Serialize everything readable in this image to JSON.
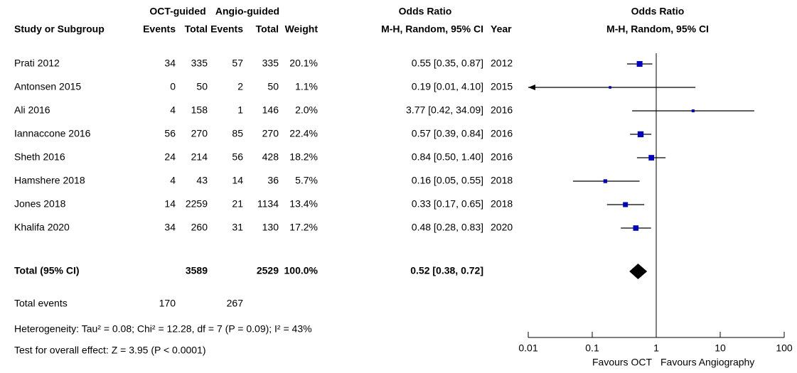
{
  "chart_data": {
    "type": "forest",
    "group_headers": {
      "oct": "OCT-guided",
      "angio": "Angio-guided",
      "or_table": "Odds Ratio",
      "or_plot": "Odds Ratio"
    },
    "column_headers": {
      "study": "Study or Subgroup",
      "events_oct": "Events",
      "total_oct": "Total",
      "events_angio": "Events",
      "total_angio": "Total",
      "weight": "Weight",
      "ci": "M-H, Random, 95% CI",
      "year": "Year",
      "plot_ci": "M-H, Random, 95% CI"
    },
    "studies": [
      "Prati 2012",
      "Antonsen 2015",
      "Ali 2016",
      "Iannaccone 2016",
      "Sheth 2016",
      "Hamshere 2018",
      "Jones 2018",
      "Khalifa 2020"
    ],
    "events_oct": [
      34,
      0,
      4,
      56,
      24,
      4,
      14,
      34
    ],
    "total_oct": [
      335,
      50,
      158,
      270,
      214,
      43,
      2259,
      260
    ],
    "events_angio": [
      57,
      2,
      1,
      85,
      56,
      14,
      21,
      31
    ],
    "total_angio": [
      335,
      50,
      146,
      270,
      428,
      36,
      1134,
      130
    ],
    "weights": [
      20.1,
      1.1,
      2.0,
      22.4,
      18.2,
      5.7,
      13.4,
      17.2
    ],
    "weight_labels": [
      "20.1%",
      "1.1%",
      "2.0%",
      "22.4%",
      "18.2%",
      "5.7%",
      "13.4%",
      "17.2%"
    ],
    "ci_labels": [
      "0.55 [0.35, 0.87]",
      "0.19 [0.01, 4.10]",
      "3.77 [0.42, 34.09]",
      "0.57 [0.39, 0.84]",
      "0.84 [0.50, 1.40]",
      "0.16 [0.05, 0.55]",
      "0.33 [0.17, 0.65]",
      "0.48 [0.28, 0.83]"
    ],
    "years": [
      2012,
      2015,
      2016,
      2016,
      2016,
      2018,
      2018,
      2020
    ],
    "or": [
      0.55,
      0.19,
      3.77,
      0.57,
      0.84,
      0.16,
      0.33,
      0.48
    ],
    "ci_low": [
      0.35,
      0.01,
      0.42,
      0.39,
      0.5,
      0.05,
      0.17,
      0.28
    ],
    "ci_high": [
      0.87,
      4.1,
      34.09,
      0.84,
      1.4,
      0.55,
      0.65,
      0.83
    ],
    "total": {
      "label": "Total (95% CI)",
      "total_oct": 3589,
      "total_angio": 2529,
      "weight_label": "100.0%",
      "ci_label": "0.52 [0.38, 0.72]",
      "or": 0.52,
      "ci_low": 0.38,
      "ci_high": 0.72
    },
    "total_events": {
      "label": "Total events",
      "oct": 170,
      "angio": 267
    },
    "heterogeneity": "Heterogeneity: Tau² = 0.08; Chi² = 12.28, df = 7 (P = 0.09); I² = 43%",
    "overall_effect": "Test for overall effect: Z = 3.95 (P < 0.0001)",
    "xlim": [
      0.01,
      100
    ],
    "xticks": [
      0.01,
      0.1,
      1,
      10,
      100
    ],
    "log_x": true,
    "favours_left": "Favours OCT",
    "favours_right": "Favours Angiography",
    "color": "#0000c0"
  }
}
